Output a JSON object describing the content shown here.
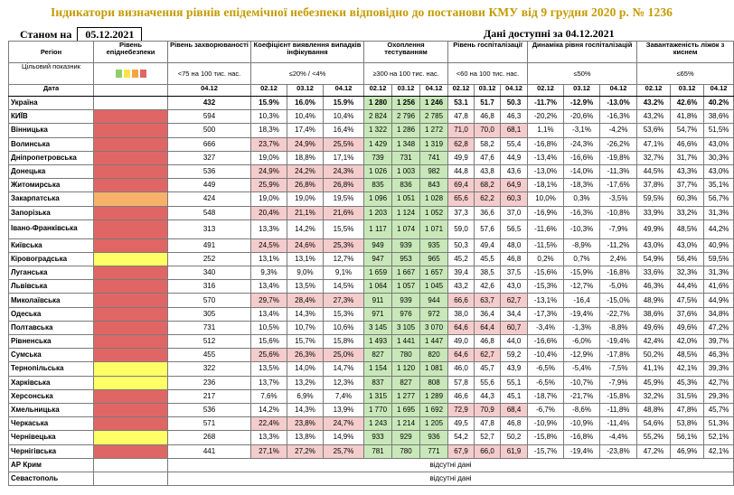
{
  "title": "Індикатори визначення рівнів епідемічної небезпеки відповідно до постанови КМУ від 9 грудня 2020 р. № 1236",
  "as_of_label": "Станом на",
  "as_of_date": "05.12.2021",
  "data_available": "Дані доступні за 04.12.2021",
  "colors": {
    "red": "#e06666",
    "orange": "#f6b26b",
    "yellow": "#ffff66",
    "pink": "#f4cccc",
    "green": "#c9e8b9",
    "title": "#c59a00"
  },
  "headers": {
    "region": "Регіон",
    "level": "Рівень епіднебезпеки",
    "incidence": "Рівень захворюваності",
    "detection": "Коефіцієнт виявлення випадків інфікування",
    "testing": "Охоплення тестуванням",
    "hosp_level": "Рівень госпіталізації",
    "hosp_dynamics": "Динаміка рівня госпіталізацій",
    "bed_load": "Завантаженість ліжок з киснем"
  },
  "criteria": {
    "target": "Цільовий показник",
    "incidence": "<75 на 100 тис. нас.",
    "detection": "≤20% / <4%",
    "testing": "≥300 на 100 тис. нас.",
    "hosp_level": "<60 на 100 тис. нас.",
    "hosp_dynamics": "≤50%",
    "bed_load": "≤65%"
  },
  "date_row": {
    "label": "Дата",
    "incidence": "04.12",
    "d1": "02.12",
    "d2": "03.12",
    "d3": "04.12"
  },
  "missing_text": "відсутні дані",
  "rows": [
    {
      "region": "Україна",
      "level": "",
      "inc": "432",
      "det": [
        "15.9%",
        "16.0%",
        "15.9%"
      ],
      "test": [
        "1 280",
        "1 256",
        "1 246"
      ],
      "hosp": [
        "53.1",
        "51.7",
        "50.3"
      ],
      "dyn": [
        "-11.7%",
        "-12.9%",
        "-13.0%"
      ],
      "bed": [
        "43.2%",
        "42.6%",
        "40.2%"
      ]
    },
    {
      "region": "КИЇВ",
      "level": "red",
      "inc": "594",
      "det": [
        "10,3%",
        "10,4%",
        "10,4%"
      ],
      "test": [
        "2 824",
        "2 796",
        "2 785"
      ],
      "hosp": [
        "47,8",
        "46,8",
        "46,3"
      ],
      "dyn": [
        "-20,2%",
        "-20,6%",
        "-16,3%"
      ],
      "bed": [
        "43,2%",
        "41,8%",
        "38,6%"
      ]
    },
    {
      "region": "Вінницька",
      "level": "red",
      "inc": "500",
      "det": [
        "18,3%",
        "17,4%",
        "16,4%"
      ],
      "test": [
        "1 322",
        "1 286",
        "1 272"
      ],
      "hosp": [
        "71,0",
        "70,0",
        "68,1"
      ],
      "dyn": [
        "1,1%",
        "-3,1%",
        "-4,2%"
      ],
      "bed": [
        "53,6%",
        "54,7%",
        "51,5%"
      ]
    },
    {
      "region": "Волинська",
      "level": "red",
      "inc": "666",
      "det": [
        "23,7%",
        "24,9%",
        "25,5%"
      ],
      "test": [
        "1 429",
        "1 348",
        "1 319"
      ],
      "hosp": [
        "62,8",
        "58,2",
        "55,4"
      ],
      "dyn": [
        "-16,8%",
        "-24,3%",
        "-26,2%"
      ],
      "bed": [
        "47,1%",
        "46,6%",
        "43,0%"
      ]
    },
    {
      "region": "Дніпропетровська",
      "level": "red",
      "inc": "327",
      "det": [
        "19,0%",
        "18,8%",
        "17,1%"
      ],
      "test": [
        "739",
        "731",
        "741"
      ],
      "hosp": [
        "49,9",
        "47,6",
        "44,9"
      ],
      "dyn": [
        "-13,4%",
        "-16,6%",
        "-19,8%"
      ],
      "bed": [
        "32,7%",
        "31,7%",
        "30,3%"
      ]
    },
    {
      "region": "Донецька",
      "level": "red",
      "inc": "536",
      "det": [
        "24,9%",
        "24,2%",
        "24,3%"
      ],
      "test": [
        "1 026",
        "1 003",
        "982"
      ],
      "hosp": [
        "44,8",
        "43,8",
        "43,6"
      ],
      "dyn": [
        "-13,0%",
        "-14,0%",
        "-11,3%"
      ],
      "bed": [
        "44,5%",
        "43,3%",
        "43,0%"
      ]
    },
    {
      "region": "Житомирська",
      "level": "red",
      "inc": "449",
      "det": [
        "25,9%",
        "26,8%",
        "26,8%"
      ],
      "test": [
        "835",
        "836",
        "843"
      ],
      "hosp": [
        "69,4",
        "68,2",
        "64,9"
      ],
      "dyn": [
        "-18,1%",
        "-18,3%",
        "-17,6%"
      ],
      "bed": [
        "37,8%",
        "37,7%",
        "35,1%"
      ]
    },
    {
      "region": "Закарпатська",
      "level": "orange",
      "inc": "424",
      "det": [
        "19,0%",
        "19,0%",
        "19,5%"
      ],
      "test": [
        "1 096",
        "1 051",
        "1 028"
      ],
      "hosp": [
        "65,6",
        "62,2",
        "60,3"
      ],
      "dyn": [
        "10,0%",
        "0,3%",
        "-3,5%"
      ],
      "bed": [
        "59,5%",
        "60,3%",
        "56,7%"
      ]
    },
    {
      "region": "Запорізька",
      "level": "red",
      "inc": "548",
      "det": [
        "20,4%",
        "21,1%",
        "21,6%"
      ],
      "test": [
        "1 203",
        "1 124",
        "1 052"
      ],
      "hosp": [
        "37,3",
        "36,6",
        "37,0"
      ],
      "dyn": [
        "-16,9%",
        "-16,3%",
        "-10,8%"
      ],
      "bed": [
        "33,9%",
        "33,2%",
        "31,3%"
      ]
    },
    {
      "region": "Івано-Франківська",
      "level": "red",
      "inc": "313",
      "det": [
        "13,3%",
        "14,2%",
        "15,5%"
      ],
      "test": [
        "1 117",
        "1 074",
        "1 071"
      ],
      "hosp": [
        "59,0",
        "57,6",
        "56,5"
      ],
      "dyn": [
        "-11,6%",
        "-10,3%",
        "-7,9%"
      ],
      "bed": [
        "49,9%",
        "48,5%",
        "44,2%"
      ],
      "tall": true
    },
    {
      "region": "Київська",
      "level": "red",
      "inc": "491",
      "det": [
        "24,5%",
        "24,6%",
        "25,3%"
      ],
      "test": [
        "949",
        "939",
        "935"
      ],
      "hosp": [
        "50,3",
        "49,4",
        "48,0"
      ],
      "dyn": [
        "-11,5%",
        "-8,9%",
        "-11,2%"
      ],
      "bed": [
        "43,0%",
        "43,0%",
        "40,9%"
      ]
    },
    {
      "region": "Кіровоградська",
      "level": "yellow",
      "inc": "252",
      "det": [
        "13,1%",
        "13,1%",
        "12,7%"
      ],
      "test": [
        "947",
        "953",
        "965"
      ],
      "hosp": [
        "45,2",
        "45,5",
        "46,8"
      ],
      "dyn": [
        "0,2%",
        "0,7%",
        "2,4%"
      ],
      "bed": [
        "54,9%",
        "56,4%",
        "59,5%"
      ]
    },
    {
      "region": "Луганська",
      "level": "red",
      "inc": "340",
      "det": [
        "9,3%",
        "9,0%",
        "9,1%"
      ],
      "test": [
        "1 659",
        "1 667",
        "1 657"
      ],
      "hosp": [
        "39,4",
        "38,5",
        "37,5"
      ],
      "dyn": [
        "-15,6%",
        "-15,9%",
        "-16,8%"
      ],
      "bed": [
        "33,6%",
        "32,3%",
        "31,3%"
      ]
    },
    {
      "region": "Львівська",
      "level": "red",
      "inc": "316",
      "det": [
        "13,4%",
        "13,5%",
        "14,5%"
      ],
      "test": [
        "1 064",
        "1 057",
        "1 045"
      ],
      "hosp": [
        "43,2",
        "42,6",
        "43,0"
      ],
      "dyn": [
        "-15,3%",
        "-12,7%",
        "-5,0%"
      ],
      "bed": [
        "46,3%",
        "44,4%",
        "41,6%"
      ]
    },
    {
      "region": "Миколаївська",
      "level": "red",
      "inc": "570",
      "det": [
        "29,7%",
        "28,4%",
        "27,3%"
      ],
      "test": [
        "911",
        "939",
        "944"
      ],
      "hosp": [
        "66,6",
        "63,7",
        "62,7"
      ],
      "dyn": [
        "-13,1%",
        "-16,4",
        "-15,0%"
      ],
      "bed": [
        "48,9%",
        "47,5%",
        "44,9%"
      ]
    },
    {
      "region": "Одеська",
      "level": "red",
      "inc": "305",
      "det": [
        "13,4%",
        "14,3%",
        "15,3%"
      ],
      "test": [
        "971",
        "976",
        "972"
      ],
      "hosp": [
        "38,0",
        "36,4",
        "34,4"
      ],
      "dyn": [
        "-17,3%",
        "-19,4%",
        "-22,7%"
      ],
      "bed": [
        "38,6%",
        "37,6%",
        "34,8%"
      ]
    },
    {
      "region": "Полтавська",
      "level": "red",
      "inc": "731",
      "det": [
        "10,5%",
        "10,7%",
        "10,6%"
      ],
      "test": [
        "3 145",
        "3 105",
        "3 070"
      ],
      "hosp": [
        "64,6",
        "64,4",
        "60,7"
      ],
      "dyn": [
        "-3,4%",
        "-1,3%",
        "-8,8%"
      ],
      "bed": [
        "49,6%",
        "49,6%",
        "47,2%"
      ]
    },
    {
      "region": "Рівненська",
      "level": "red",
      "inc": "512",
      "det": [
        "15,6%",
        "15,7%",
        "15,8%"
      ],
      "test": [
        "1 493",
        "1 441",
        "1 447"
      ],
      "hosp": [
        "49,0",
        "46,8",
        "44,0"
      ],
      "dyn": [
        "-16,6%",
        "-6,0%",
        "-19,4%"
      ],
      "bed": [
        "42,4%",
        "42,0%",
        "39,7%"
      ]
    },
    {
      "region": "Сумська",
      "level": "red",
      "inc": "455",
      "det": [
        "25,6%",
        "26,3%",
        "25,0%"
      ],
      "test": [
        "827",
        "780",
        "820"
      ],
      "hosp": [
        "64,6",
        "62,7",
        "59,2"
      ],
      "dyn": [
        "-10,4%",
        "-12,9%",
        "-17,8%"
      ],
      "bed": [
        "50,2%",
        "48,5%",
        "46,3%"
      ]
    },
    {
      "region": "Тернопільська",
      "level": "yellow",
      "inc": "322",
      "det": [
        "13,5%",
        "14,0%",
        "14,7%"
      ],
      "test": [
        "1 154",
        "1 120",
        "1 081"
      ],
      "hosp": [
        "46,0",
        "45,7",
        "43,9"
      ],
      "dyn": [
        "-6,5%",
        "-5,4%",
        "-7,5%"
      ],
      "bed": [
        "41,1%",
        "42,1%",
        "39,3%"
      ]
    },
    {
      "region": "Харківська",
      "level": "yellow",
      "inc": "236",
      "det": [
        "13,7%",
        "13,2%",
        "12,3%"
      ],
      "test": [
        "837",
        "827",
        "808"
      ],
      "hosp": [
        "57,8",
        "55,6",
        "55,1"
      ],
      "dyn": [
        "-6,5%",
        "-10,7%",
        "-7,9%"
      ],
      "bed": [
        "45,9%",
        "45,3%",
        "42,7%"
      ]
    },
    {
      "region": "Херсонська",
      "level": "red",
      "inc": "217",
      "det": [
        "7,6%",
        "6,9%",
        "7,4%"
      ],
      "test": [
        "1 315",
        "1 277",
        "1 289"
      ],
      "hosp": [
        "46,6",
        "44,3",
        "45,1"
      ],
      "dyn": [
        "-18,7%",
        "-21,7%",
        "-15,8%"
      ],
      "bed": [
        "32,2%",
        "31,5%",
        "29,3%"
      ]
    },
    {
      "region": "Хмельницька",
      "level": "red",
      "inc": "536",
      "det": [
        "14,2%",
        "14,3%",
        "13,9%"
      ],
      "test": [
        "1 770",
        "1 695",
        "1 692"
      ],
      "hosp": [
        "72,9",
        "70,9",
        "68,4"
      ],
      "dyn": [
        "-6,7%",
        "-8,6%",
        "-11,8%"
      ],
      "bed": [
        "48,8%",
        "47,8%",
        "45,7%"
      ]
    },
    {
      "region": "Черкаська",
      "level": "red",
      "inc": "571",
      "det": [
        "22,4%",
        "23,8%",
        "24,7%"
      ],
      "test": [
        "1 243",
        "1 214",
        "1 205"
      ],
      "hosp": [
        "49,5",
        "47,8",
        "46,8"
      ],
      "dyn": [
        "-10,9%",
        "-10,9%",
        "-11,4%"
      ],
      "bed": [
        "54,6%",
        "53,8%",
        "51,3%"
      ]
    },
    {
      "region": "Чернівецька",
      "level": "yellow",
      "inc": "268",
      "det": [
        "13,3%",
        "13,8%",
        "14,9%"
      ],
      "test": [
        "933",
        "929",
        "936"
      ],
      "hosp": [
        "54,2",
        "52,7",
        "50,2"
      ],
      "dyn": [
        "-15,8%",
        "-16,8%",
        "-4,4%"
      ],
      "bed": [
        "55,2%",
        "56,1%",
        "52,1%"
      ]
    },
    {
      "region": "Чернігівська",
      "level": "red",
      "inc": "441",
      "det": [
        "27,1%",
        "27,2%",
        "25,7%"
      ],
      "test": [
        "781",
        "780",
        "771"
      ],
      "hosp": [
        "67,9",
        "66,0",
        "61,9"
      ],
      "dyn": [
        "-15,7%",
        "-19,4%",
        "-23,8%"
      ],
      "bed": [
        "47,2%",
        "46,9%",
        "42,1%"
      ]
    }
  ],
  "missing_rows": [
    "АР Крим",
    "Севастополь"
  ]
}
